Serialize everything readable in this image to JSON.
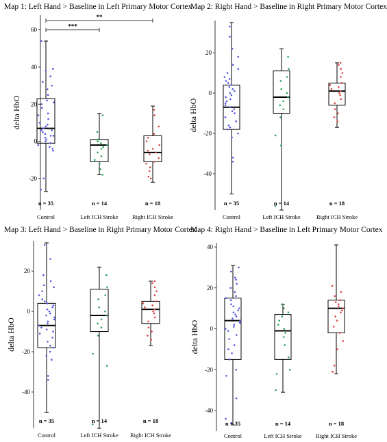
{
  "colors": {
    "control": "#5555dd",
    "left": "#2aa35a",
    "right": "#dd4444"
  },
  "chart_data": [
    {
      "type": "box",
      "title": "Map 1: Left Hand > Baseline in Left Primary Motor Cortex",
      "ylabel": "delta HbO",
      "ylim": [
        -37,
        68
      ],
      "yticks": [
        -20,
        0,
        20,
        40,
        60
      ],
      "categories": [
        "Control",
        "Left ICH Stroke",
        "Right ICH Stroke"
      ],
      "counts": [
        "n = 35",
        "n = 14",
        "n = 18"
      ],
      "boxes": [
        {
          "min": -27,
          "q1": -1,
          "median": 7,
          "q3": 23,
          "max": 54
        },
        {
          "min": -18,
          "q1": -11,
          "median": -2,
          "q3": 1,
          "max": 15
        },
        {
          "min": -22,
          "q1": -11,
          "median": -6,
          "q3": 3,
          "max": 19
        }
      ],
      "points": [
        [
          -26,
          -20,
          -5,
          -4,
          -3,
          -2,
          -1,
          0,
          1,
          2,
          3,
          3,
          4,
          5,
          6,
          6,
          7,
          8,
          9,
          10,
          12,
          14,
          15,
          18,
          20,
          21,
          22,
          25,
          28,
          30,
          32,
          35,
          38,
          39,
          54
        ],
        [
          -18,
          -15,
          -12,
          -10,
          -8,
          -6,
          -4,
          -3,
          -2,
          -1,
          0,
          1,
          5,
          14
        ],
        [
          -20,
          -19,
          -16,
          -14,
          -12,
          -11,
          -9,
          -7,
          -6,
          -5,
          -4,
          -2,
          0,
          2,
          4,
          8,
          14,
          17
        ]
      ],
      "annotations": [
        {
          "label": "***",
          "from": 0,
          "to": 1,
          "y": 60
        },
        {
          "label": "**",
          "from": 0,
          "to": 2,
          "y": 65
        }
      ]
    },
    {
      "type": "box",
      "title": "Map 2: Right Hand > Baseline in Right Primary Motor Cortex",
      "ylabel": "delta HbO",
      "ylim": [
        -58,
        36
      ],
      "yticks": [
        -40,
        -20,
        0,
        20
      ],
      "categories": [
        "Control",
        "Left ICH Stroke",
        "Right ICH Stroke"
      ],
      "counts": [
        "n = 35",
        "n = 14",
        "n = 18"
      ],
      "boxes": [
        {
          "min": -50,
          "q1": -18,
          "median": -7,
          "q3": 4,
          "max": 35
        },
        {
          "min": -58,
          "q1": -10,
          "median": -2,
          "q3": 11,
          "max": 22
        },
        {
          "min": -17,
          "q1": -6,
          "median": 1,
          "q3": 5,
          "max": 15
        }
      ],
      "points": [
        [
          -34,
          -32,
          -22,
          -20,
          -18,
          -17,
          -16,
          -14,
          -12,
          -10,
          -9,
          -8,
          -7,
          -6,
          -5,
          -4,
          -3,
          -2,
          -1,
          0,
          1,
          2,
          3,
          4,
          5,
          6,
          7,
          8,
          10,
          12,
          14,
          18,
          22,
          28,
          33
        ],
        [
          -56,
          -26,
          -21,
          -12,
          -8,
          -6,
          -4,
          -2,
          0,
          2,
          6,
          8,
          12,
          18
        ],
        [
          -14,
          -12,
          -10,
          -8,
          -5,
          -3,
          -1,
          0,
          1,
          2,
          3,
          4,
          5,
          8,
          10,
          12,
          14,
          15
        ]
      ],
      "annotations": []
    },
    {
      "type": "box",
      "title": "Map 3: Left Hand > Baseline in Right Primary Motor Cortex",
      "ylabel": "delta HbO",
      "ylim": [
        -58,
        35
      ],
      "yticks": [
        -40,
        -20,
        0,
        20
      ],
      "categories": [
        "Control",
        "Left ICH Stroke",
        "Right ICH Stroke"
      ],
      "counts": [
        "n = 35",
        "n = 14",
        "n = 18"
      ],
      "boxes": [
        {
          "min": -50,
          "q1": -18,
          "median": -7,
          "q3": 4,
          "max": 34
        },
        {
          "min": -58,
          "q1": -10,
          "median": -2,
          "q3": 11,
          "max": 22
        },
        {
          "min": -17,
          "q1": -6,
          "median": 1,
          "q3": 5,
          "max": 15
        }
      ],
      "points": [
        [
          -34,
          -32,
          -24,
          -22,
          -20,
          -18,
          -17,
          -15,
          -13,
          -11,
          -10,
          -9,
          -8,
          -7,
          -6,
          -5,
          -4,
          -3,
          -2,
          -1,
          0,
          1,
          2,
          3,
          4,
          5,
          6,
          8,
          10,
          12,
          13,
          15,
          18,
          26,
          33
        ],
        [
          -56,
          -27,
          -21,
          -12,
          -8,
          -6,
          -4,
          -2,
          0,
          2,
          6,
          8,
          12,
          18
        ],
        [
          -14,
          -12,
          -10,
          -8,
          -5,
          -3,
          -1,
          0,
          1,
          2,
          3,
          4,
          5,
          8,
          10,
          12,
          14,
          15
        ]
      ],
      "annotations": []
    },
    {
      "type": "box",
      "title": "Map 4: Right Hand > Baseline in Left Primary Motor Cortex",
      "ylabel": "delta HbO",
      "ylim": [
        -50,
        42
      ],
      "yticks": [
        -40,
        -20,
        0,
        20,
        40
      ],
      "categories": [
        "Control",
        "Left ICH Stroke",
        "Right ICH Stroke"
      ],
      "counts": [
        "n = 35",
        "n = 14",
        "n = 18"
      ],
      "boxes": [
        {
          "min": -47,
          "q1": -15,
          "median": 4,
          "q3": 15,
          "max": 31
        },
        {
          "min": -31,
          "q1": -15,
          "median": -1,
          "q3": 7,
          "max": 12
        },
        {
          "min": -22,
          "q1": -2,
          "median": 10,
          "q3": 14,
          "max": 41
        }
      ],
      "points": [
        [
          -46,
          -44,
          -34,
          -23,
          -20,
          -15,
          -12,
          -10,
          -8,
          -5,
          -3,
          -1,
          0,
          1,
          2,
          3,
          4,
          5,
          6,
          7,
          8,
          9,
          10,
          11,
          12,
          14,
          15,
          16,
          18,
          20,
          22,
          24,
          25,
          28,
          30
        ],
        [
          -30,
          -22,
          -20,
          -14,
          -8,
          -4,
          -2,
          0,
          2,
          4,
          6,
          8,
          10,
          12
        ],
        [
          -21,
          -18,
          -10,
          -6,
          -2,
          1,
          4,
          6,
          8,
          9,
          10,
          11,
          12,
          13,
          14,
          16,
          18,
          21
        ]
      ],
      "annotations": []
    }
  ]
}
